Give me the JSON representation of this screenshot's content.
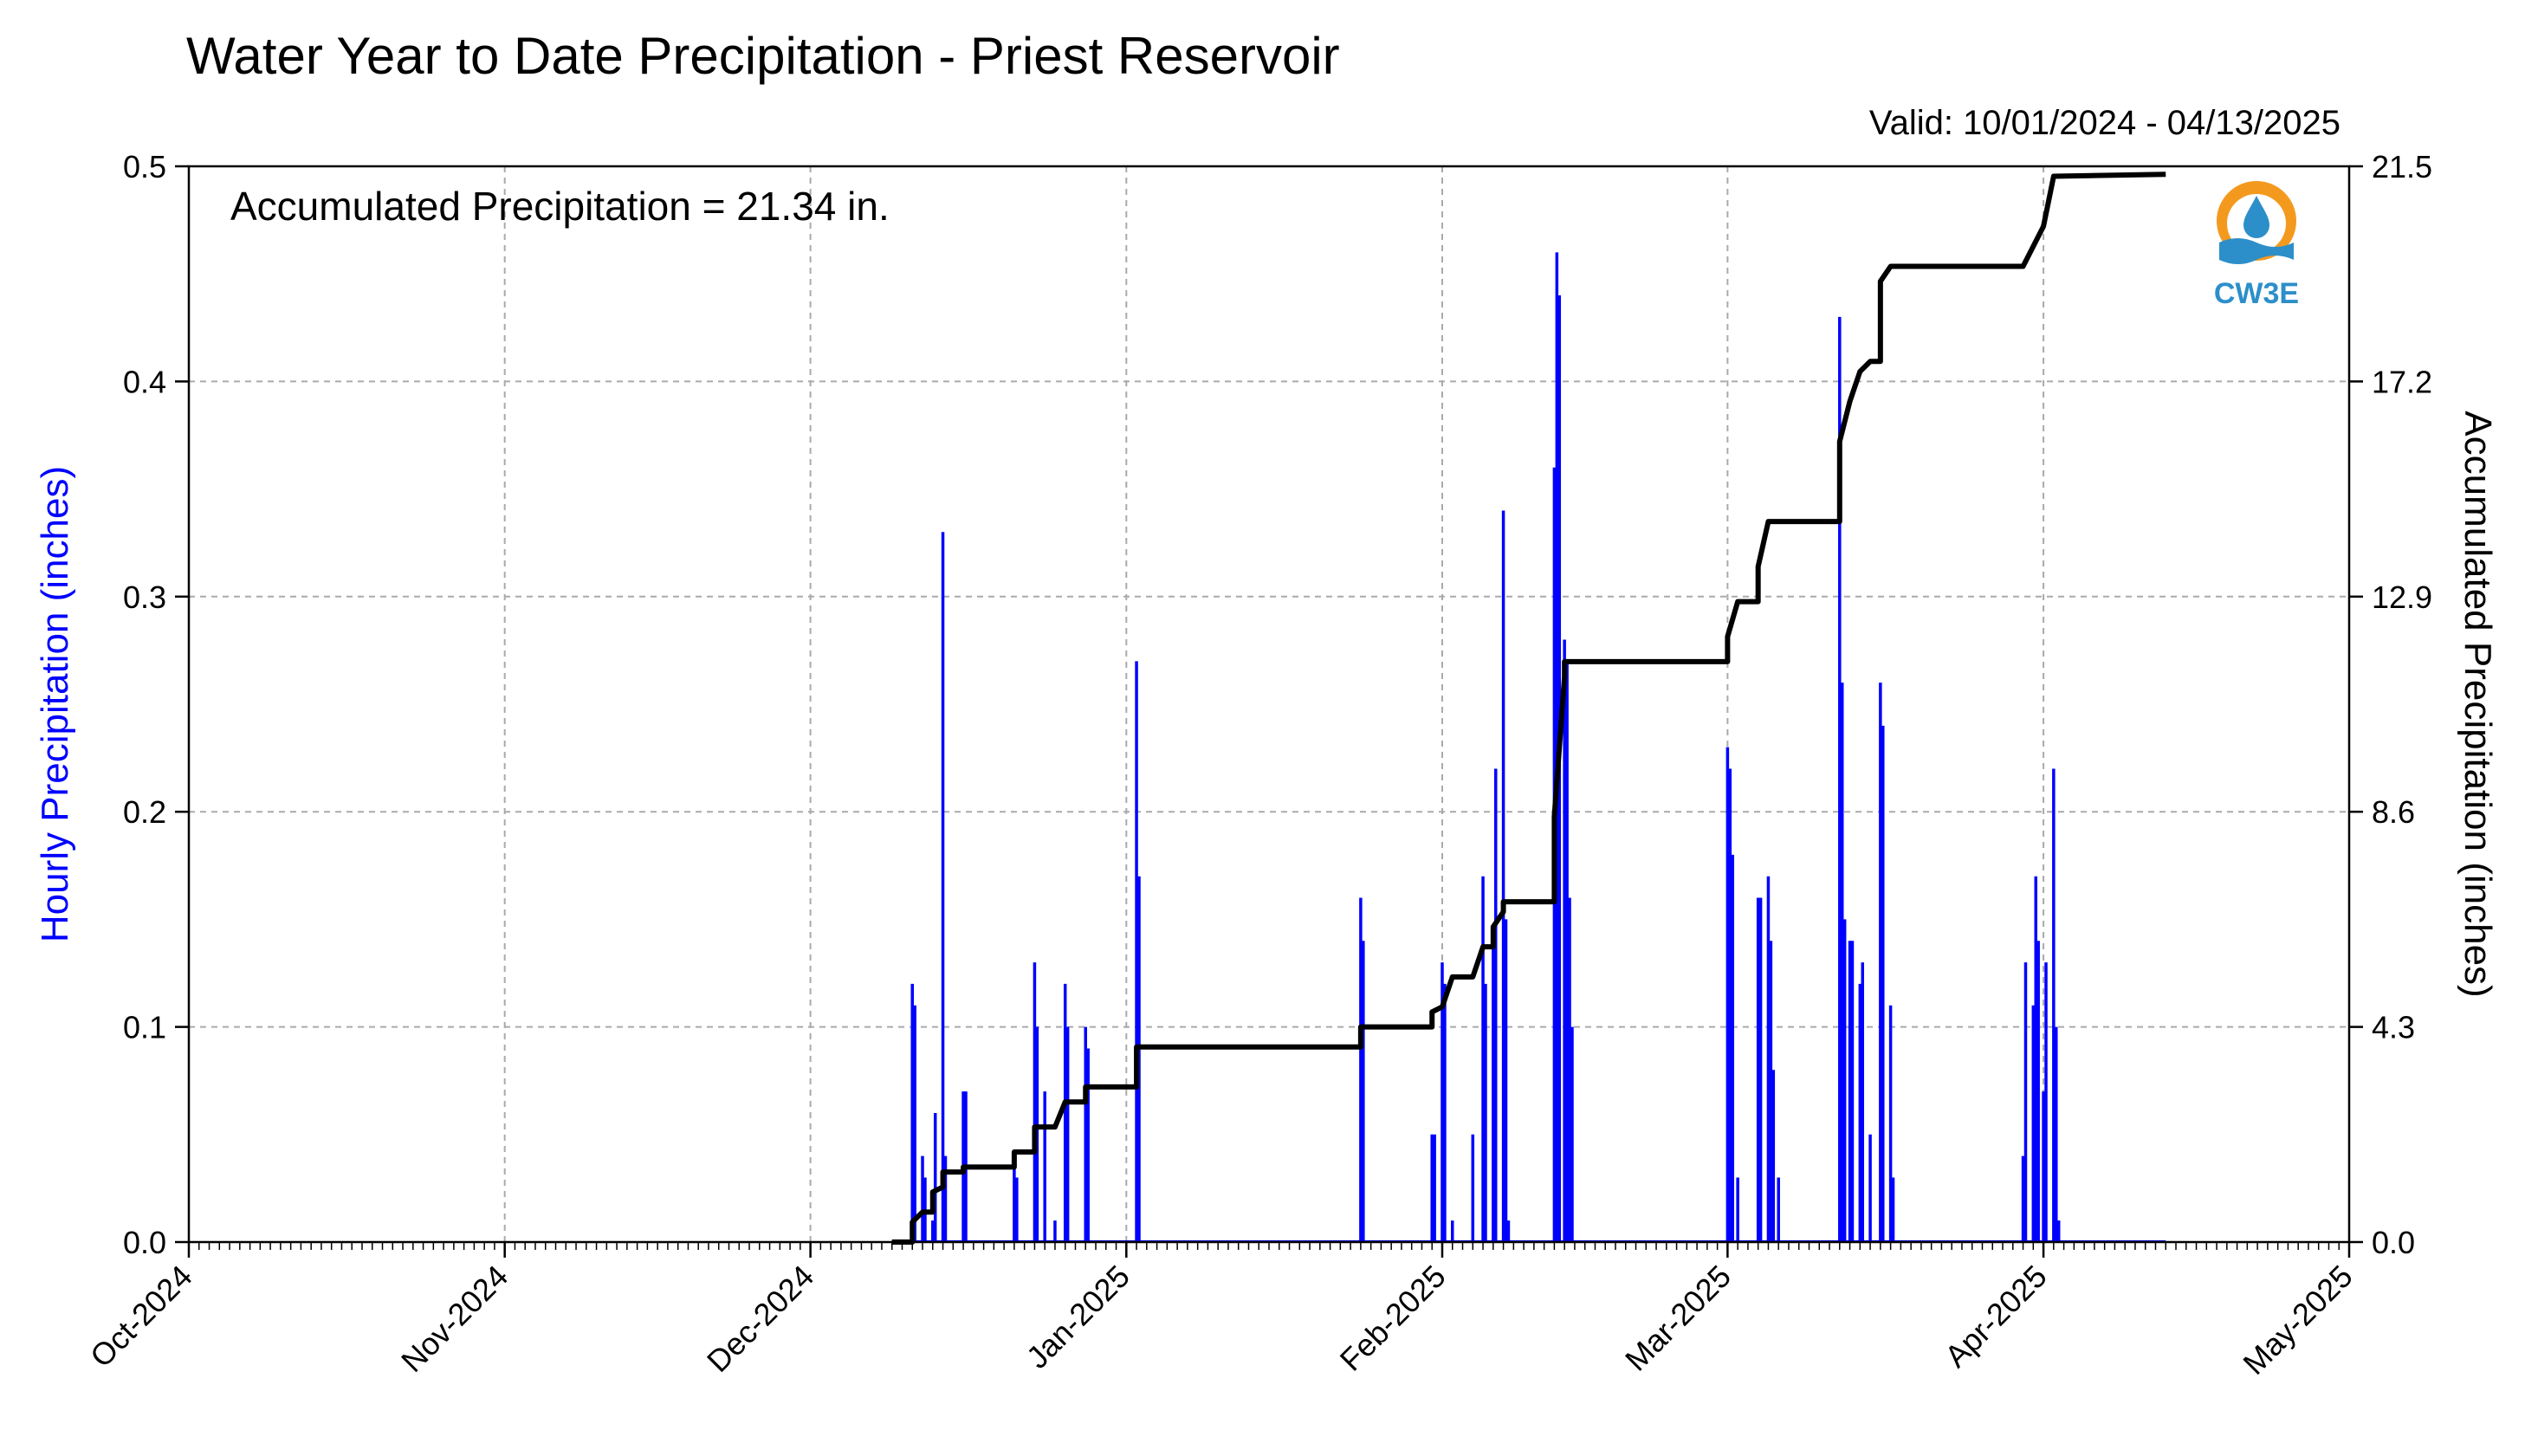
{
  "chart_data": {
    "type": "bar",
    "title": "Water Year to Date Precipitation - Priest Reservoir",
    "subtitle": "Valid: 10/01/2024 - 04/13/2025",
    "annotation": "Accumulated Precipitation = 21.34 in.",
    "logo_text": "CW3E",
    "x_axis": {
      "type": "date",
      "range": [
        "2024-10-01",
        "2025-05-01"
      ],
      "tick_labels": [
        "Oct-2024",
        "Nov-2024",
        "Dec-2024",
        "Jan-2025",
        "Feb-2025",
        "Mar-2025",
        "Apr-2025",
        "May-2025"
      ],
      "tick_dates": [
        "2024-10-01",
        "2024-11-01",
        "2024-12-01",
        "2025-01-01",
        "2025-02-01",
        "2025-03-01",
        "2025-04-01",
        "2025-05-01"
      ],
      "minor_ticks": "daily",
      "grid": true
    },
    "y_left": {
      "label": "Hourly Precipitation (inches)",
      "range": [
        0,
        0.5
      ],
      "tick_labels": [
        "0.0",
        "0.1",
        "0.2",
        "0.3",
        "0.4",
        "0.5"
      ],
      "color": "#0000ff",
      "grid": true
    },
    "y_right": {
      "label": "Accumulated Precipitation (inches)",
      "range": [
        0,
        21.5
      ],
      "tick_labels": [
        "0.0",
        "4.3",
        "8.6",
        "12.9",
        "17.2",
        "21.5"
      ],
      "color": "#000000"
    },
    "series": [
      {
        "type": "bar",
        "axis": "left",
        "color": "#0000ff",
        "values": [
          [
            "2024-12-11",
            0.12
          ],
          [
            "2024-12-11",
            0.11
          ],
          [
            "2024-12-12",
            0.04
          ],
          [
            "2024-12-12",
            0.03
          ],
          [
            "2024-12-13",
            0.01
          ],
          [
            "2024-12-13",
            0.06
          ],
          [
            "2024-12-14",
            0.33
          ],
          [
            "2024-12-14",
            0.04
          ],
          [
            "2024-12-16",
            0.07
          ],
          [
            "2024-12-16",
            0.07
          ],
          [
            "2024-12-21",
            0.04
          ],
          [
            "2024-12-21",
            0.03
          ],
          [
            "2024-12-23",
            0.13
          ],
          [
            "2024-12-23",
            0.1
          ],
          [
            "2024-12-24",
            0.07
          ],
          [
            "2024-12-25",
            0.01
          ],
          [
            "2024-12-26",
            0.12
          ],
          [
            "2024-12-26",
            0.1
          ],
          [
            "2024-12-28",
            0.1
          ],
          [
            "2024-12-28",
            0.09
          ],
          [
            "2025-01-02",
            0.27
          ],
          [
            "2025-01-02",
            0.17
          ],
          [
            "2025-01-24",
            0.16
          ],
          [
            "2025-01-24",
            0.14
          ],
          [
            "2025-01-31",
            0.05
          ],
          [
            "2025-01-31",
            0.05
          ],
          [
            "2025-02-01",
            0.13
          ],
          [
            "2025-02-01",
            0.12
          ],
          [
            "2025-02-02",
            0.01
          ],
          [
            "2025-02-04",
            0.05
          ],
          [
            "2025-02-05",
            0.17
          ],
          [
            "2025-02-05",
            0.12
          ],
          [
            "2025-02-06",
            0.14
          ],
          [
            "2025-02-06",
            0.22
          ],
          [
            "2025-02-07",
            0.34
          ],
          [
            "2025-02-07",
            0.15
          ],
          [
            "2025-02-07",
            0.01
          ],
          [
            "2025-02-12",
            0.36
          ],
          [
            "2025-02-12",
            0.46
          ],
          [
            "2025-02-12",
            0.44
          ],
          [
            "2025-02-13",
            0.28
          ],
          [
            "2025-02-13",
            0.27
          ],
          [
            "2025-02-13",
            0.16
          ],
          [
            "2025-02-13",
            0.1
          ],
          [
            "2025-03-01",
            0.23
          ],
          [
            "2025-03-01",
            0.22
          ],
          [
            "2025-03-01",
            0.18
          ],
          [
            "2025-03-02",
            0.03
          ],
          [
            "2025-03-04",
            0.16
          ],
          [
            "2025-03-04",
            0.16
          ],
          [
            "2025-03-05",
            0.17
          ],
          [
            "2025-03-05",
            0.14
          ],
          [
            "2025-03-05",
            0.08
          ],
          [
            "2025-03-06",
            0.03
          ],
          [
            "2025-03-12",
            0.43
          ],
          [
            "2025-03-12",
            0.26
          ],
          [
            "2025-03-12",
            0.15
          ],
          [
            "2025-03-13",
            0.14
          ],
          [
            "2025-03-13",
            0.14
          ],
          [
            "2025-03-14",
            0.12
          ],
          [
            "2025-03-14",
            0.13
          ],
          [
            "2025-03-15",
            0.05
          ],
          [
            "2025-03-16",
            0.26
          ],
          [
            "2025-03-16",
            0.24
          ],
          [
            "2025-03-17",
            0.11
          ],
          [
            "2025-03-17",
            0.03
          ],
          [
            "2025-03-30",
            0.04
          ],
          [
            "2025-03-30",
            0.13
          ],
          [
            "2025-03-31",
            0.11
          ],
          [
            "2025-03-31",
            0.17
          ],
          [
            "2025-03-31",
            0.14
          ],
          [
            "2025-04-01",
            0.07
          ],
          [
            "2025-04-01",
            0.13
          ],
          [
            "2025-04-02",
            0.22
          ],
          [
            "2025-04-02",
            0.1
          ],
          [
            "2025-04-02",
            0.01
          ]
        ]
      },
      {
        "type": "line",
        "axis": "right",
        "color": "#000000",
        "points": [
          [
            "2024-12-09",
            0.0
          ],
          [
            "2024-12-11",
            0.0
          ],
          [
            "2024-12-11",
            0.4
          ],
          [
            "2024-12-12",
            0.6
          ],
          [
            "2024-12-13",
            0.6
          ],
          [
            "2024-12-13",
            1.0
          ],
          [
            "2024-12-14",
            1.1
          ],
          [
            "2024-12-14",
            1.4
          ],
          [
            "2024-12-16",
            1.4
          ],
          [
            "2024-12-16",
            1.5
          ],
          [
            "2024-12-21",
            1.5
          ],
          [
            "2024-12-21",
            1.8
          ],
          [
            "2024-12-23",
            1.8
          ],
          [
            "2024-12-23",
            2.3
          ],
          [
            "2024-12-25",
            2.3
          ],
          [
            "2024-12-26",
            2.8
          ],
          [
            "2024-12-28",
            2.8
          ],
          [
            "2024-12-28",
            3.1
          ],
          [
            "2025-01-02",
            3.1
          ],
          [
            "2025-01-02",
            3.9
          ],
          [
            "2025-01-24",
            3.9
          ],
          [
            "2025-01-24",
            4.3
          ],
          [
            "2025-01-31",
            4.3
          ],
          [
            "2025-01-31",
            4.6
          ],
          [
            "2025-02-01",
            4.7
          ],
          [
            "2025-02-02",
            5.3
          ],
          [
            "2025-02-04",
            5.3
          ],
          [
            "2025-02-05",
            5.9
          ],
          [
            "2025-02-06",
            5.9
          ],
          [
            "2025-02-06",
            6.3
          ],
          [
            "2025-02-07",
            6.6
          ],
          [
            "2025-02-07",
            6.8
          ],
          [
            "2025-02-12",
            6.8
          ],
          [
            "2025-02-12",
            8.5
          ],
          [
            "2025-02-13",
            11.3
          ],
          [
            "2025-02-13",
            11.6
          ],
          [
            "2025-03-01",
            11.6
          ],
          [
            "2025-03-01",
            12.1
          ],
          [
            "2025-03-02",
            12.8
          ],
          [
            "2025-03-04",
            12.8
          ],
          [
            "2025-03-04",
            13.5
          ],
          [
            "2025-03-05",
            14.4
          ],
          [
            "2025-03-12",
            14.4
          ],
          [
            "2025-03-12",
            16.0
          ],
          [
            "2025-03-13",
            16.8
          ],
          [
            "2025-03-14",
            17.4
          ],
          [
            "2025-03-15",
            17.6
          ],
          [
            "2025-03-16",
            17.6
          ],
          [
            "2025-03-16",
            19.2
          ],
          [
            "2025-03-17",
            19.5
          ],
          [
            "2025-03-30",
            19.5
          ],
          [
            "2025-03-31",
            19.9
          ],
          [
            "2025-04-01",
            20.3
          ],
          [
            "2025-04-02",
            21.3
          ],
          [
            "2025-04-13",
            21.34
          ]
        ]
      }
    ]
  }
}
